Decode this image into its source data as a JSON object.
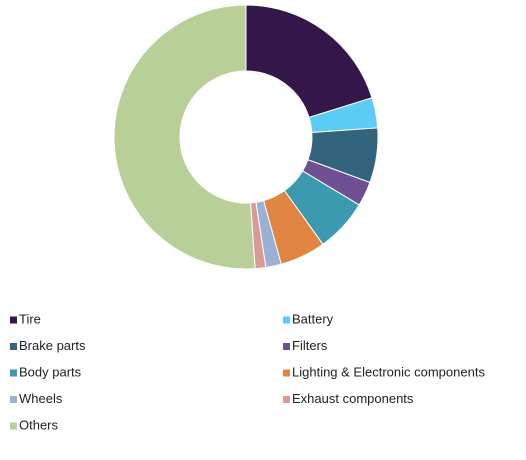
{
  "chart_data": {
    "type": "donut",
    "categories": [
      "Tire",
      "Battery",
      "Brake parts",
      "Filters",
      "Body parts",
      "Lighting & Electronic components",
      "Wheels",
      "Exhaust components",
      "Others"
    ],
    "values": [
      20.2,
      3.7,
      6.7,
      3,
      6.5,
      5.6,
      1.9,
      1.3,
      51.1
    ],
    "colors": [
      "#35164a",
      "#5bcdf5",
      "#33647e",
      "#6e4f92",
      "#3b9ab0",
      "#e08642",
      "#9ab0d4",
      "#d89a92",
      "#b8cf98"
    ],
    "legend": "bottom"
  }
}
